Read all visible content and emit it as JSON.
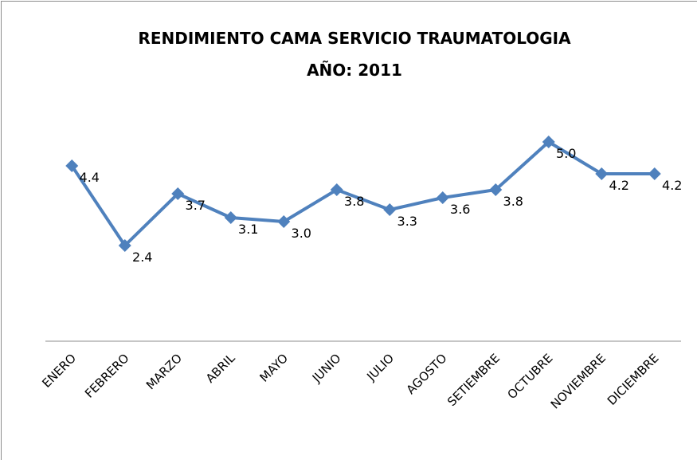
{
  "chart_data": {
    "type": "line",
    "title": "RENDIMIENTO CAMA SERVICIO TRAUMATOLOGIA",
    "subtitle": "AÑO: 2011",
    "categories": [
      "ENERO",
      "FEBRERO",
      "MARZO",
      "ABRIL",
      "MAYO",
      "JUNIO",
      "JULIO",
      "AGOSTO",
      "SETIEMBRE",
      "OCTUBRE",
      "NOVIEMBRE",
      "DICIEMBRE"
    ],
    "values": [
      4.4,
      2.4,
      3.7,
      3.1,
      3.0,
      3.8,
      3.3,
      3.6,
      3.8,
      5.0,
      4.2,
      4.2
    ],
    "value_labels": [
      "4.4",
      "2.4",
      "3.7",
      "3.1",
      "3.0",
      "3.8",
      "3.3",
      "3.6",
      "3.8",
      "5.0",
      "4.2",
      "4.2"
    ],
    "color": "#4f81bd",
    "ylim": [
      0,
      6
    ]
  }
}
